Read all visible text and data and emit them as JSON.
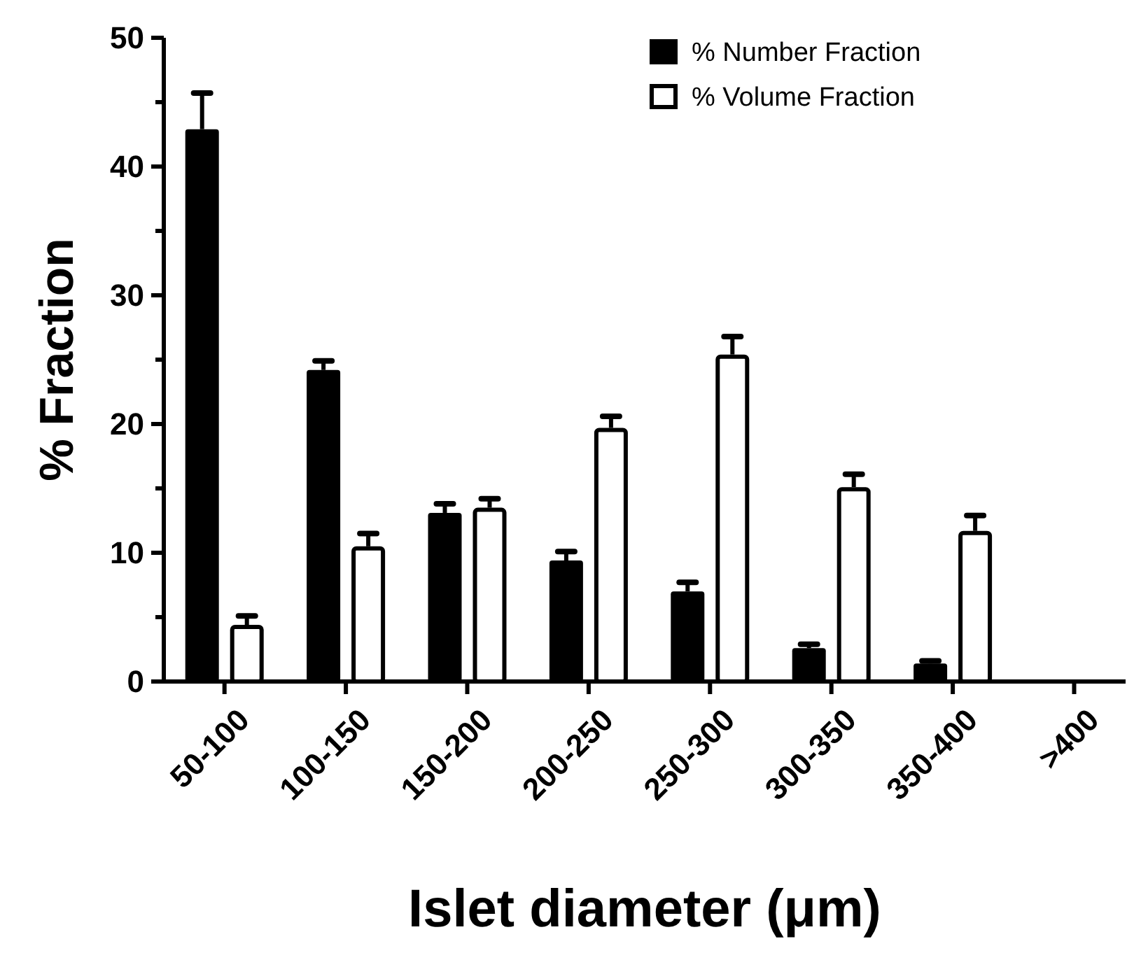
{
  "chart_data": {
    "type": "bar",
    "xlabel": "Islet diameter (μm)",
    "ylabel": "% Fraction",
    "categories": [
      "50-100",
      "100-150",
      "150-200",
      "200-250",
      "250-300",
      "300-350",
      "350-400",
      ">400"
    ],
    "series": [
      {
        "name": "% Number Fraction",
        "color": "#000000",
        "values": [
          42.9,
          24.2,
          13.1,
          9.4,
          7.0,
          2.6,
          1.4,
          null
        ],
        "errors": [
          2.8,
          0.7,
          0.7,
          0.7,
          0.7,
          0.3,
          0.2,
          null
        ]
      },
      {
        "name": "% Volume Fraction",
        "color": "#ffffff",
        "values": [
          4.4,
          10.5,
          13.5,
          19.7,
          25.4,
          15.1,
          11.7,
          null
        ],
        "errors": [
          0.7,
          1.0,
          0.7,
          0.9,
          1.4,
          1.0,
          1.2,
          null
        ]
      }
    ],
    "ylim": [
      0,
      50
    ],
    "yticks": [
      0,
      10,
      20,
      30,
      40,
      50
    ],
    "legend": "top right"
  }
}
